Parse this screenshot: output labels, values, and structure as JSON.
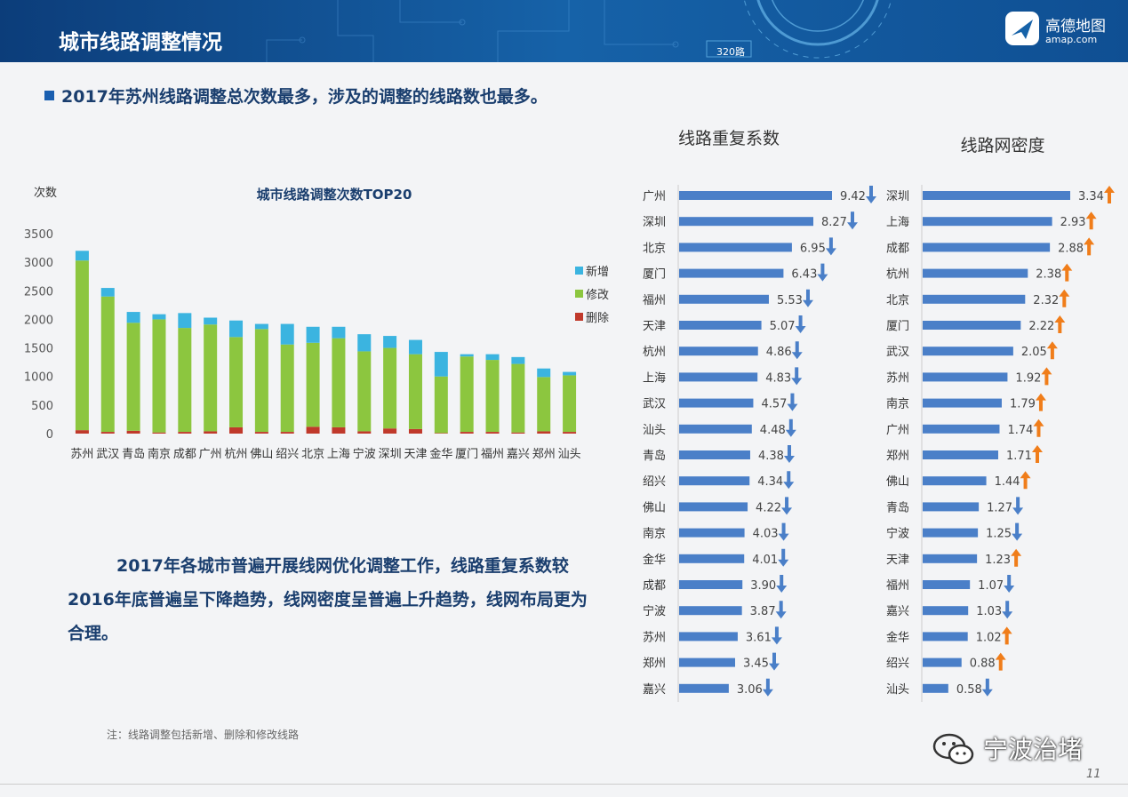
{
  "header": {
    "title": "城市线路调整情况",
    "road_label": "320路",
    "brand_name": "高德地图",
    "brand_url": "amap.com"
  },
  "headline": "2017年苏州线路调整总次数最多，涉及的调整的线路数也最多。",
  "summary": "2017年各城市普遍开展线网优化调整工作，线路重复系数较2016年底普遍呈下降趋势，线网密度呈普遍上升趋势，线网布局更为合理。",
  "footnote": "注：线路调整包括新增、删除和修改线路",
  "watermark": "宁波治堵",
  "page_number": "11",
  "colors": {
    "add": "#3bb4e0",
    "modify": "#8cc63f",
    "delete": "#c0392b",
    "bar_blue": "#4a7fc8",
    "arrow_down": "#4a7fc8",
    "arrow_up": "#f07d1a",
    "heading": "#1a3e6e"
  },
  "chart_data": [
    {
      "type": "bar",
      "stacked": true,
      "title": "城市线路调整次数TOP20",
      "ylabel": "次数",
      "ylim": [
        0,
        3500
      ],
      "yticks": [
        0,
        500,
        1000,
        1500,
        2000,
        2500,
        3000,
        3500
      ],
      "legend_position": "right",
      "categories": [
        "苏州",
        "武汉",
        "青岛",
        "南京",
        "成都",
        "广州",
        "杭州",
        "佛山",
        "绍兴",
        "北京",
        "上海",
        "宁波",
        "深圳",
        "天津",
        "金华",
        "厦门",
        "福州",
        "嘉兴",
        "郑州",
        "汕头"
      ],
      "series": [
        {
          "name": "删除",
          "color": "#c0392b",
          "values": [
            60,
            30,
            50,
            20,
            30,
            40,
            110,
            30,
            30,
            120,
            110,
            40,
            90,
            80,
            10,
            30,
            30,
            20,
            40,
            30
          ]
        },
        {
          "name": "修改",
          "color": "#8cc63f",
          "values": [
            2970,
            2370,
            1890,
            1980,
            1820,
            1870,
            1580,
            1800,
            1530,
            1470,
            1560,
            1400,
            1410,
            1310,
            990,
            1320,
            1260,
            1200,
            950,
            990
          ]
        },
        {
          "name": "新增",
          "color": "#3bb4e0",
          "values": [
            170,
            150,
            190,
            90,
            260,
            120,
            290,
            90,
            360,
            280,
            200,
            300,
            210,
            250,
            430,
            40,
            100,
            120,
            150,
            60
          ]
        }
      ]
    },
    {
      "type": "bar",
      "orientation": "horizontal",
      "title": "线路重复系数",
      "categories": [
        "广州",
        "深圳",
        "北京",
        "厦门",
        "福州",
        "天津",
        "杭州",
        "上海",
        "武汉",
        "汕头",
        "青岛",
        "绍兴",
        "佛山",
        "南京",
        "金华",
        "成都",
        "宁波",
        "苏州",
        "郑州",
        "嘉兴"
      ],
      "values": [
        9.42,
        8.27,
        6.95,
        6.43,
        5.53,
        5.07,
        4.86,
        4.83,
        4.57,
        4.48,
        4.38,
        4.34,
        4.22,
        4.03,
        4.01,
        3.9,
        3.87,
        3.61,
        3.45,
        3.06
      ],
      "labels": [
        "9.42",
        "8.27",
        "6.95",
        "6.43",
        "5.53",
        "5.07",
        "4.86",
        "4.83",
        "4.57",
        "4.48",
        "4.38",
        "4.34",
        "4.22",
        "4.03",
        "4.01",
        "3.90",
        "3.87",
        "3.61",
        "3.45",
        "3.06"
      ],
      "trend": [
        "down",
        "down",
        "down",
        "down",
        "down",
        "down",
        "down",
        "down",
        "down",
        "down",
        "down",
        "down",
        "down",
        "down",
        "down",
        "down",
        "down",
        "down",
        "down",
        "down"
      ]
    },
    {
      "type": "bar",
      "orientation": "horizontal",
      "title": "线路网密度",
      "categories": [
        "深圳",
        "上海",
        "成都",
        "杭州",
        "北京",
        "厦门",
        "武汉",
        "苏州",
        "南京",
        "广州",
        "郑州",
        "佛山",
        "青岛",
        "宁波",
        "天津",
        "福州",
        "嘉兴",
        "金华",
        "绍兴",
        "汕头"
      ],
      "values": [
        3.34,
        2.93,
        2.88,
        2.38,
        2.32,
        2.22,
        2.05,
        1.92,
        1.79,
        1.74,
        1.71,
        1.44,
        1.27,
        1.25,
        1.23,
        1.07,
        1.03,
        1.02,
        0.88,
        0.58
      ],
      "labels": [
        "3.34",
        "2.93",
        "2.88",
        "2.38",
        "2.32",
        "2.22",
        "2.05",
        "1.92",
        "1.79",
        "1.74",
        "1.71",
        "1.44",
        "1.27",
        "1.25",
        "1.23",
        "1.07",
        "1.03",
        "1.02",
        "0.88",
        "0.58"
      ],
      "trend": [
        "up",
        "up",
        "up",
        "up",
        "up",
        "up",
        "up",
        "up",
        "up",
        "up",
        "up",
        "up",
        "down",
        "down",
        "up",
        "down",
        "down",
        "up",
        "up",
        "down"
      ]
    }
  ]
}
